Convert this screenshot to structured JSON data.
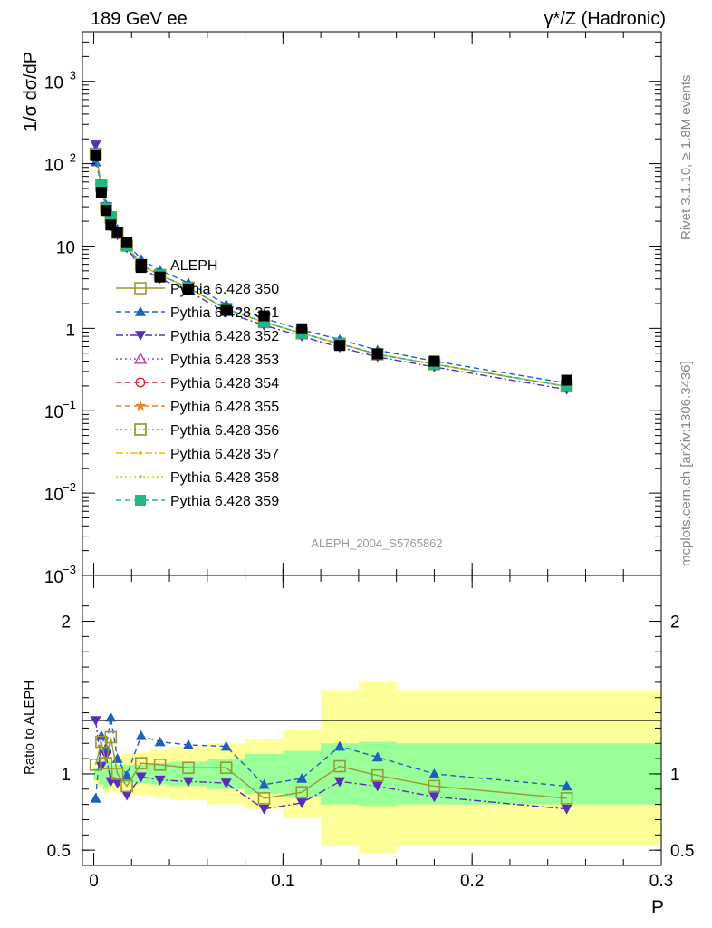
{
  "header": {
    "left": "189 GeV ee",
    "right": "γ*/Z (Hadronic)"
  },
  "side_text": {
    "rivet": "Rivet 3.1.10, ≥ 1.8M events",
    "mcplots": "mcplots.cern.ch [arXiv:1306.3436]"
  },
  "watermark": "ALEPH_2004_S5765862",
  "chart_data": [
    {
      "type": "scatter",
      "panel": "main",
      "ylabel": "1/σ  dσ/dP",
      "yscale": "log",
      "ylim": [
        0.001,
        4000
      ],
      "xlim": [
        -0.006,
        0.3
      ],
      "ytick_labels": [
        {
          "v": 0.001,
          "base": "10",
          "exp": "−3"
        },
        {
          "v": 0.01,
          "base": "10",
          "exp": "−2"
        },
        {
          "v": 0.1,
          "base": "10",
          "exp": "−1"
        },
        {
          "v": 1,
          "base": "1",
          "exp": ""
        },
        {
          "v": 10,
          "base": "10",
          "exp": ""
        },
        {
          "v": 100,
          "base": "10",
          "exp": "2"
        },
        {
          "v": 1000,
          "base": "10",
          "exp": "3"
        }
      ],
      "x": [
        0.001,
        0.004,
        0.0065,
        0.009,
        0.0125,
        0.0175,
        0.025,
        0.035,
        0.05,
        0.07,
        0.09,
        0.11,
        0.13,
        0.15,
        0.18,
        0.25
      ],
      "data": {
        "name": "ALEPH",
        "values": [
          125,
          45,
          27,
          18,
          14.5,
          11,
          5.5,
          4.2,
          3.0,
          1.65,
          1.42,
          0.99,
          0.62,
          0.49,
          0.4,
          0.235
        ]
      },
      "legend": [
        {
          "name": "ALEPH",
          "style": "data",
          "color": "#000000"
        },
        {
          "name": "Pythia 6.428 350",
          "style": "solid",
          "marker": "square-open",
          "color": "#999933"
        },
        {
          "name": "Pythia 6.428 351",
          "style": "dashed",
          "marker": "triangle-up",
          "color": "#1f5fbf"
        },
        {
          "name": "Pythia 6.428 352",
          "style": "dashdot",
          "marker": "triangle-down",
          "color": "#5b2bbd"
        },
        {
          "name": "Pythia 6.428 353",
          "style": "dotted",
          "marker": "triangle-open",
          "color": "#c03a9d"
        },
        {
          "name": "Pythia 6.428 354",
          "style": "dashed",
          "marker": "circle-open",
          "color": "#e0202a"
        },
        {
          "name": "Pythia 6.428 355",
          "style": "dashed",
          "marker": "star",
          "color": "#f08020"
        },
        {
          "name": "Pythia 6.428 356",
          "style": "dotted",
          "marker": "square-open",
          "color": "#77a020"
        },
        {
          "name": "Pythia 6.428 357",
          "style": "dashdot",
          "marker": "dot",
          "color": "#e8c000"
        },
        {
          "name": "Pythia 6.428 358",
          "style": "dotted",
          "marker": "dot",
          "color": "#c8d800"
        },
        {
          "name": "Pythia 6.428 359",
          "style": "dashed",
          "marker": "square",
          "color": "#20b888"
        }
      ]
    },
    {
      "type": "line",
      "panel": "ratio",
      "ylabel": "Ratio to ALEPH",
      "xlabel": "P",
      "ylim": [
        0.4,
        2.3
      ],
      "xlim": [
        -0.006,
        0.3
      ],
      "ytick_labels": [
        {
          "v": 0.5,
          "label": "0.5"
        },
        {
          "v": 1,
          "label": "1"
        },
        {
          "v": 2,
          "label": "2"
        }
      ],
      "xtick_labels": [
        {
          "v": 0,
          "label": "0"
        },
        {
          "v": 0.1,
          "label": "0.1"
        },
        {
          "v": 0.2,
          "label": "0.2"
        },
        {
          "v": 0.3,
          "label": "0.3"
        }
      ],
      "bins": [
        [
          0,
          0.0025
        ],
        [
          0.0025,
          0.005
        ],
        [
          0.005,
          0.0075
        ],
        [
          0.0075,
          0.01
        ],
        [
          0.01,
          0.015
        ],
        [
          0.015,
          0.02
        ],
        [
          0.02,
          0.03
        ],
        [
          0.03,
          0.04
        ],
        [
          0.04,
          0.06
        ],
        [
          0.06,
          0.08
        ],
        [
          0.08,
          0.1
        ],
        [
          0.1,
          0.12
        ],
        [
          0.12,
          0.14
        ],
        [
          0.14,
          0.16
        ],
        [
          0.16,
          0.2
        ],
        [
          0.2,
          0.3
        ]
      ],
      "band_stat": [
        [
          0.96,
          1.04
        ],
        [
          0.93,
          1.07
        ],
        [
          0.9,
          1.1
        ],
        [
          0.92,
          1.08
        ],
        [
          0.94,
          1.06
        ],
        [
          0.94,
          1.06
        ],
        [
          0.94,
          1.06
        ],
        [
          0.93,
          1.07
        ],
        [
          0.92,
          1.08
        ],
        [
          0.9,
          1.1
        ],
        [
          0.87,
          1.13
        ],
        [
          0.85,
          1.15
        ],
        [
          0.8,
          1.2
        ],
        [
          0.79,
          1.21
        ],
        [
          0.8,
          1.2
        ],
        [
          0.8,
          1.2
        ]
      ],
      "band_total": [
        [
          0.93,
          1.07
        ],
        [
          0.9,
          1.1
        ],
        [
          0.87,
          1.13
        ],
        [
          0.89,
          1.11
        ],
        [
          0.88,
          1.12
        ],
        [
          0.87,
          1.13
        ],
        [
          0.86,
          1.14
        ],
        [
          0.85,
          1.16
        ],
        [
          0.83,
          1.18
        ],
        [
          0.8,
          1.2
        ],
        [
          0.77,
          1.23
        ],
        [
          0.71,
          1.29
        ],
        [
          0.53,
          1.55
        ],
        [
          0.48,
          1.6
        ],
        [
          0.53,
          1.55
        ],
        [
          0.53,
          1.55
        ]
      ],
      "x": [
        0.001,
        0.004,
        0.0065,
        0.009,
        0.0125,
        0.0175,
        0.025,
        0.035,
        0.05,
        0.07,
        0.09,
        0.11,
        0.13,
        0.15,
        0.18,
        0.25
      ],
      "series": [
        {
          "name": "Pythia 6.428 351",
          "values": [
            0.84,
            1.25,
            1.17,
            1.37,
            1.1,
            0.99,
            1.25,
            1.21,
            1.19,
            1.18,
            0.93,
            0.97,
            1.18,
            1.11,
            1.0,
            0.92
          ]
        },
        {
          "name": "Pythia 6.428 352",
          "values": [
            1.35,
            1.05,
            1.12,
            0.95,
            0.94,
            0.86,
            0.98,
            0.96,
            0.95,
            0.94,
            0.77,
            0.81,
            0.95,
            0.92,
            0.85,
            0.77
          ]
        },
        {
          "name": "Pythia 6.428 350",
          "values": [
            1.06,
            1.21,
            1.07,
            1.24,
            1.0,
            0.92,
            1.07,
            1.06,
            1.04,
            1.04,
            0.84,
            0.88,
            1.05,
            0.99,
            0.92,
            0.84
          ]
        }
      ],
      "reference": 1
    }
  ]
}
